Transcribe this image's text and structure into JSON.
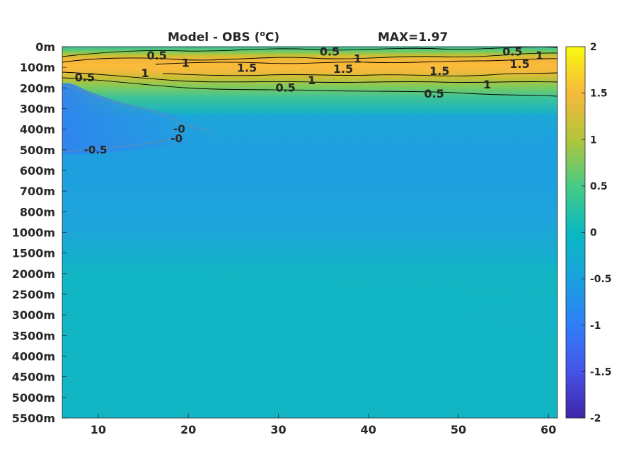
{
  "chart_data": {
    "type": "heatmap",
    "title": "Model - OBS (",
    "title_unit_super": "o",
    "title_unit_end": "C)",
    "max_label": "MAX=1.97",
    "x": {
      "ticks": [
        10,
        20,
        30,
        40,
        50,
        60
      ],
      "range": [
        6,
        61
      ]
    },
    "y": {
      "levels": [
        "0m",
        "100m",
        "200m",
        "300m",
        "400m",
        "500m",
        "600m",
        "700m",
        "800m",
        "1000m",
        "1500m",
        "2000m",
        "2500m",
        "3000m",
        "3500m",
        "4000m",
        "4500m",
        "5000m",
        "5500m"
      ],
      "direction": "depth-increasing-downward"
    },
    "colorbar": {
      "range": [
        -2,
        2
      ],
      "ticks": [
        "2",
        "1.5",
        "1",
        "0.5",
        "0",
        "-0.5",
        "-1",
        "-1.5",
        "-2"
      ],
      "colormap": "parula"
    },
    "field_summary": {
      "max": 1.97,
      "warm_core_depth_levels": [
        "100m"
      ],
      "warm_core_value": 1.5,
      "cold_anomaly_region": {
        "x_range": [
          6,
          22
        ],
        "depth_range": [
          "200m",
          "500m"
        ],
        "value": -0.5
      },
      "deep_value": 0.0,
      "mid_depth_value": -0.3
    },
    "contour_labels": [
      {
        "text": "0.5",
        "x": 16.5,
        "depth_index": 0.45
      },
      {
        "text": "1",
        "x": 19.7,
        "depth_index": 0.8
      },
      {
        "text": "1",
        "x": 15.2,
        "depth_index": 1.3
      },
      {
        "text": "0.5",
        "x": 8.5,
        "depth_index": 1.5
      },
      {
        "text": "1.5",
        "x": 26.5,
        "depth_index": 1.05
      },
      {
        "text": "0.5",
        "x": 35.7,
        "depth_index": 0.25
      },
      {
        "text": "1",
        "x": 38.8,
        "depth_index": 0.6
      },
      {
        "text": "1.5",
        "x": 37.2,
        "depth_index": 1.1
      },
      {
        "text": "1",
        "x": 33.7,
        "depth_index": 1.65
      },
      {
        "text": "0.5",
        "x": 30.8,
        "depth_index": 2.0
      },
      {
        "text": "1.5",
        "x": 47.9,
        "depth_index": 1.2
      },
      {
        "text": "0.5",
        "x": 47.3,
        "depth_index": 2.3
      },
      {
        "text": "0.5",
        "x": 56.0,
        "depth_index": 0.25
      },
      {
        "text": "1",
        "x": 59.0,
        "depth_index": 0.45
      },
      {
        "text": "1.5",
        "x": 56.8,
        "depth_index": 0.85
      },
      {
        "text": "1",
        "x": 53.2,
        "depth_index": 1.85
      },
      {
        "text": "-0.5",
        "x": 9.7,
        "depth_index": 5.0,
        "negative": true
      },
      {
        "text": "-0",
        "x": 19.0,
        "depth_index": 4.0,
        "negative": true
      },
      {
        "text": "-0",
        "x": 18.7,
        "depth_index": 4.45,
        "negative": true
      }
    ]
  }
}
